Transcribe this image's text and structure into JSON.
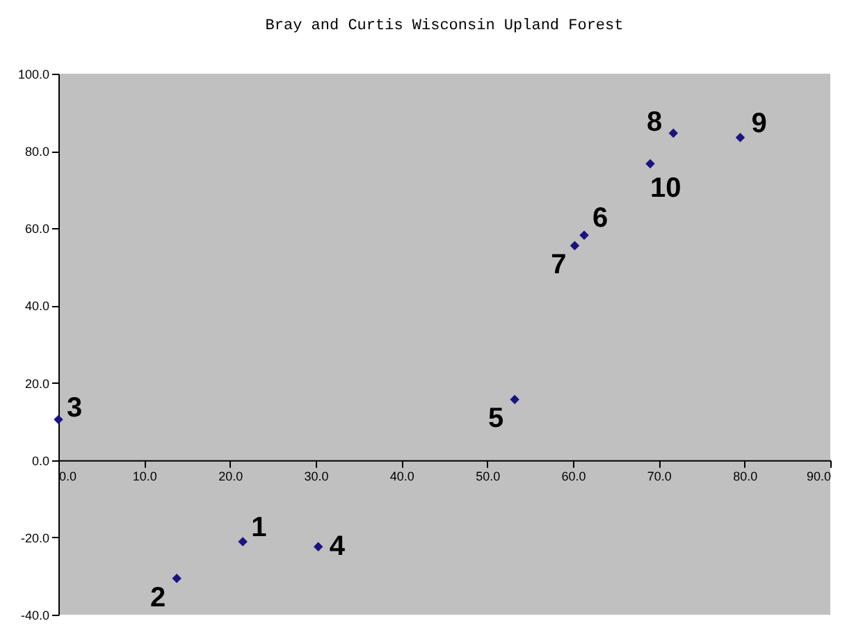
{
  "chart_data": {
    "type": "scatter",
    "title": "Bray and Curtis Wisconsin Upland Forest",
    "x": [
      21.5,
      13.8,
      0.0,
      30.3,
      53.2,
      61.3,
      60.2,
      71.7,
      79.5,
      69.0
    ],
    "series": [
      {
        "color": "#1c1280",
        "values": [
          -21.1,
          -30.6,
          10.5,
          -22.4,
          15.7,
          58.2,
          55.5,
          84.6,
          83.5,
          76.7
        ]
      }
    ],
    "marker": "diamond",
    "xlim": [
      0,
      90
    ],
    "ylim": [
      -40,
      100
    ],
    "xticks": [
      {
        "value": 0,
        "label": "0.0"
      },
      {
        "value": 10,
        "label": "10.0"
      },
      {
        "value": 20,
        "label": "20.0"
      },
      {
        "value": 30,
        "label": "30.0"
      },
      {
        "value": 40,
        "label": "40.0"
      },
      {
        "value": 50,
        "label": "50.0"
      },
      {
        "value": 60,
        "label": "60.0"
      },
      {
        "value": 70,
        "label": "70.0"
      },
      {
        "value": 80,
        "label": "80.0"
      },
      {
        "value": 90,
        "label": "90.0"
      }
    ],
    "yticks": [
      {
        "value": -40,
        "label": "-40.0"
      },
      {
        "value": -20,
        "label": "-20.0"
      },
      {
        "value": 0,
        "label": "0.0"
      },
      {
        "value": 20,
        "label": "20.0"
      },
      {
        "value": 40,
        "label": "40.0"
      },
      {
        "value": 60,
        "label": "60.0"
      },
      {
        "value": 80,
        "label": "80.0"
      },
      {
        "value": 100,
        "label": "100.0"
      }
    ],
    "annotations": [
      {
        "text": "1",
        "x": 21.5,
        "y": -21.1
      },
      {
        "text": "2",
        "x": 13.8,
        "y": -30.6
      },
      {
        "text": "3",
        "x": 0.0,
        "y": 10.5
      },
      {
        "text": "4",
        "x": 30.3,
        "y": -22.4
      },
      {
        "text": "5",
        "x": 53.2,
        "y": 15.7
      },
      {
        "text": "6",
        "x": 61.3,
        "y": 58.2
      },
      {
        "text": "7",
        "x": 60.2,
        "y": 55.5
      },
      {
        "text": "8",
        "x": 71.7,
        "y": 84.6
      },
      {
        "text": "9",
        "x": 79.5,
        "y": 83.5
      },
      {
        "text": "10",
        "x": 69.0,
        "y": 76.7
      }
    ]
  }
}
